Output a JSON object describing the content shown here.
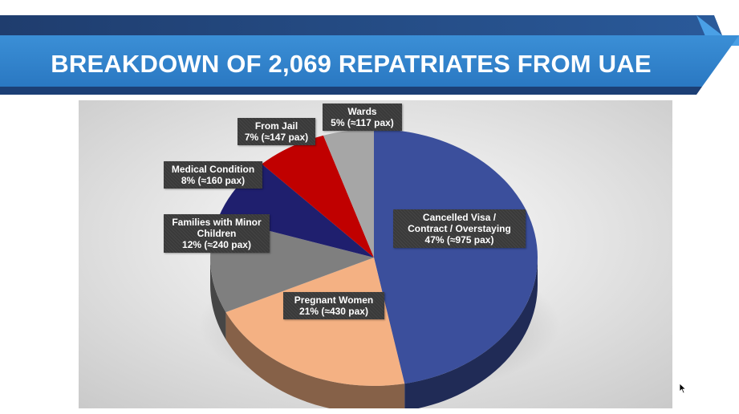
{
  "slide": {
    "title": "BREAKDOWN OF 2,069 REPATRIATES FROM UAE"
  },
  "chart_data": {
    "type": "pie",
    "style": "3d",
    "slices": [
      {
        "key": "cancelled",
        "label_lines": [
          "Cancelled Visa /",
          "Contract / Overstaying"
        ],
        "value_text": "47% (≈975 pax)",
        "value": 47,
        "pax": 975,
        "color": "#3b4f9c"
      },
      {
        "key": "pregnant",
        "label_lines": [
          "Pregnant Women"
        ],
        "value_text": "21% (≈430 pax)",
        "value": 21,
        "pax": 430,
        "color": "#f4b183"
      },
      {
        "key": "families",
        "label_lines": [
          "Families with Minor",
          "Children"
        ],
        "value_text": "12% (≈240 pax)",
        "value": 12,
        "pax": 240,
        "color": "#7f7f7f"
      },
      {
        "key": "medical",
        "label_lines": [
          "Medical Condition"
        ],
        "value_text": "8% (≈160 pax)",
        "value": 8,
        "pax": 160,
        "color": "#1f1f6e"
      },
      {
        "key": "jail",
        "label_lines": [
          "From Jail"
        ],
        "value_text": "7% (≈147 pax)",
        "value": 7,
        "pax": 147,
        "color": "#c00000"
      },
      {
        "key": "wards",
        "label_lines": [
          "Wards"
        ],
        "value_text": "5% (≈117 pax)",
        "value": 5,
        "pax": 117,
        "color": "#a6a6a6"
      }
    ]
  }
}
